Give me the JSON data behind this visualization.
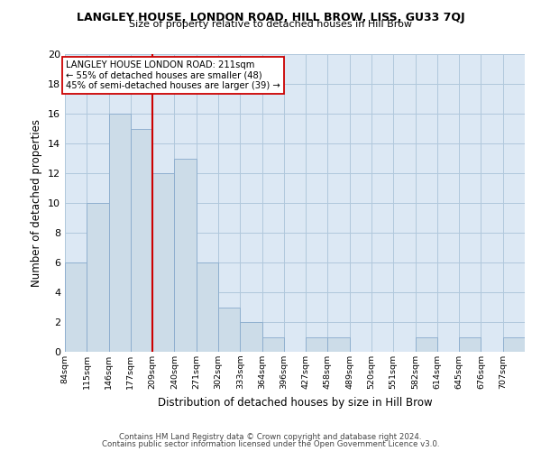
{
  "title": "LANGLEY HOUSE, LONDON ROAD, HILL BROW, LISS, GU33 7QJ",
  "subtitle": "Size of property relative to detached houses in Hill Brow",
  "xlabel": "Distribution of detached houses by size in Hill Brow",
  "ylabel": "Number of detached properties",
  "bar_color": "#ccdce8",
  "bar_edge_color": "#88aacc",
  "grid_color": "#b0c8dc",
  "background_color": "#dce8f4",
  "bin_labels": [
    "84sqm",
    "115sqm",
    "146sqm",
    "177sqm",
    "209sqm",
    "240sqm",
    "271sqm",
    "302sqm",
    "333sqm",
    "364sqm",
    "396sqm",
    "427sqm",
    "458sqm",
    "489sqm",
    "520sqm",
    "551sqm",
    "582sqm",
    "614sqm",
    "645sqm",
    "676sqm",
    "707sqm"
  ],
  "bar_heights": [
    6,
    10,
    16,
    15,
    12,
    13,
    6,
    3,
    2,
    1,
    0,
    1,
    1,
    0,
    0,
    0,
    1,
    0,
    1,
    0,
    1
  ],
  "bin_edges_raw": [
    84,
    115,
    146,
    177,
    209,
    240,
    271,
    302,
    333,
    364,
    396,
    427,
    458,
    489,
    520,
    551,
    582,
    614,
    645,
    676,
    707,
    738
  ],
  "property_line_bin_index": 4,
  "annotation_text_line1": "LANGLEY HOUSE LONDON ROAD: 211sqm",
  "annotation_text_line2": "← 55% of detached houses are smaller (48)",
  "annotation_text_line3": "45% of semi-detached houses are larger (39) →",
  "annotation_box_color": "#ffffff",
  "annotation_box_edge_color": "#cc0000",
  "property_line_color": "#cc0000",
  "ylim": [
    0,
    20
  ],
  "yticks": [
    0,
    2,
    4,
    6,
    8,
    10,
    12,
    14,
    16,
    18,
    20
  ],
  "footer_line1": "Contains HM Land Registry data © Crown copyright and database right 2024.",
  "footer_line2": "Contains public sector information licensed under the Open Government Licence v3.0."
}
